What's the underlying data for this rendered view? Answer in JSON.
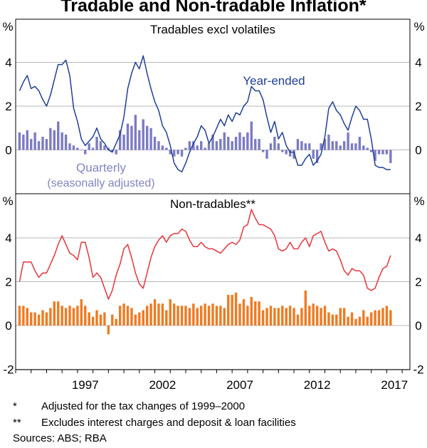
{
  "title": "Tradable and Non-tradable Inflation*",
  "chart_data": [
    {
      "type": "line+bar",
      "title": "Tradables excl volatiles",
      "unit_label": "%",
      "ylim": [
        -2,
        6
      ],
      "yticks": [
        0,
        2,
        4
      ],
      "ytick_labels": [
        "0",
        "2",
        "4"
      ],
      "line_series": {
        "name": "Year-ended",
        "color": "#1f3f99",
        "x": [
          1993.25,
          1993.5,
          1993.75,
          1994,
          1994.25,
          1994.5,
          1994.75,
          1995,
          1995.25,
          1995.5,
          1995.75,
          1996,
          1996.25,
          1996.5,
          1996.75,
          1997,
          1997.25,
          1997.5,
          1997.75,
          1998,
          1998.25,
          1998.5,
          1998.75,
          1999,
          1999.25,
          1999.5,
          1999.75,
          2000,
          2000.25,
          2000.5,
          2000.75,
          2001,
          2001.25,
          2001.5,
          2001.75,
          2002,
          2002.25,
          2002.5,
          2002.75,
          2003,
          2003.25,
          2003.5,
          2003.75,
          2004,
          2004.25,
          2004.5,
          2004.75,
          2005,
          2005.25,
          2005.5,
          2005.75,
          2006,
          2006.25,
          2006.5,
          2006.75,
          2007,
          2007.25,
          2007.5,
          2007.75,
          2008,
          2008.25,
          2008.5,
          2008.75,
          2009,
          2009.25,
          2009.5,
          2009.75,
          2010,
          2010.25,
          2010.5,
          2010.75,
          2011,
          2011.25,
          2011.5,
          2011.75,
          2012,
          2012.25,
          2012.5,
          2012.75,
          2013,
          2013.25,
          2013.5,
          2013.75,
          2014,
          2014.25,
          2014.5,
          2014.75,
          2015,
          2015.25,
          2015.5,
          2015.75,
          2016,
          2016.25,
          2016.5,
          2016.75,
          2017,
          2017.25
        ],
        "values": [
          2.7,
          3.1,
          3.4,
          2.8,
          2.9,
          2.7,
          2.3,
          2.0,
          2.5,
          3.2,
          3.9,
          3.9,
          4.1,
          3.4,
          1.9,
          1.3,
          0.5,
          0.2,
          0.4,
          0.6,
          1.0,
          0.5,
          0.3,
          0.0,
          -0.1,
          0.3,
          0.7,
          1.5,
          2.8,
          3.5,
          4.0,
          3.7,
          4.3,
          3.5,
          2.8,
          2.2,
          1.8,
          1.1,
          0.8,
          0.2,
          -0.6,
          -0.9,
          -1.0,
          -0.6,
          -0.1,
          0.3,
          0.6,
          1.1,
          0.9,
          0.3,
          0.6,
          1.0,
          1.4,
          1.1,
          1.6,
          1.3,
          1.7,
          1.6,
          2.0,
          2.2,
          2.9,
          2.7,
          2.7,
          2.3,
          1.5,
          0.8,
          1.3,
          0.5,
          0.8,
          0.2,
          -0.1,
          -0.1,
          -0.7,
          -0.7,
          -0.4,
          -0.2,
          -0.7,
          -0.5,
          -0.2,
          0.6,
          1.9,
          2.2,
          1.8,
          1.6,
          1.2,
          0.9,
          1.5,
          2.0,
          1.8,
          1.4,
          1.4,
          0.5,
          -0.7,
          -0.8,
          -0.8,
          -0.9,
          -0.9
        ]
      },
      "bar_series": {
        "name": "Quarterly (seasonally adjusted)",
        "label_lines": [
          "Quarterly",
          "(seasonally adjusted)"
        ],
        "color": "#7b7bc4",
        "x": [
          1993.25,
          1993.5,
          1993.75,
          1994,
          1994.25,
          1994.5,
          1994.75,
          1995,
          1995.25,
          1995.5,
          1995.75,
          1996,
          1996.25,
          1996.5,
          1996.75,
          1997,
          1997.25,
          1997.5,
          1997.75,
          1998,
          1998.25,
          1998.5,
          1998.75,
          1999,
          1999.25,
          1999.5,
          1999.75,
          2000,
          2000.25,
          2000.5,
          2000.75,
          2001,
          2001.25,
          2001.5,
          2001.75,
          2002,
          2002.25,
          2002.5,
          2002.75,
          2003,
          2003.25,
          2003.5,
          2003.75,
          2004,
          2004.25,
          2004.5,
          2004.75,
          2005,
          2005.25,
          2005.5,
          2005.75,
          2006,
          2006.25,
          2006.5,
          2006.75,
          2007,
          2007.25,
          2007.5,
          2007.75,
          2008,
          2008.25,
          2008.5,
          2008.75,
          2009,
          2009.25,
          2009.5,
          2009.75,
          2010,
          2010.25,
          2010.5,
          2010.75,
          2011,
          2011.25,
          2011.5,
          2011.75,
          2012,
          2012.25,
          2012.5,
          2012.75,
          2013,
          2013.25,
          2013.5,
          2013.75,
          2014,
          2014.25,
          2014.5,
          2014.75,
          2015,
          2015.25,
          2015.5,
          2015.75,
          2016,
          2016.25,
          2016.5,
          2016.75,
          2017,
          2017.25
        ],
        "values": [
          0.8,
          0.7,
          0.9,
          0.5,
          0.8,
          0.4,
          0.6,
          0.5,
          1.0,
          0.9,
          1.3,
          0.8,
          0.7,
          0.3,
          0.2,
          0.1,
          0.0,
          -0.2,
          0.3,
          0.1,
          0.6,
          0.4,
          0.2,
          0.1,
          -0.1,
          -0.2,
          0.9,
          0.7,
          1.2,
          1.1,
          1.6,
          0.9,
          1.4,
          1.1,
          1.0,
          0.6,
          0.4,
          0.2,
          0.1,
          -0.2,
          -0.3,
          -0.2,
          -0.3,
          0.1,
          0.4,
          0.4,
          0.2,
          0.4,
          0.1,
          0.3,
          0.7,
          0.4,
          0.5,
          0.8,
          0.6,
          0.4,
          0.6,
          0.8,
          0.6,
          0.8,
          1.3,
          0.5,
          0.5,
          -0.1,
          -0.4,
          0.3,
          0.6,
          0.3,
          -0.1,
          -0.2,
          -0.3,
          -0.4,
          0.5,
          0.4,
          0.3,
          0.3,
          -0.4,
          -0.6,
          0.3,
          0.5,
          0.7,
          0.4,
          0.4,
          0.2,
          0.4,
          0.8,
          0.3,
          0.3,
          0.6,
          0.2,
          0.1,
          -0.1,
          -0.5,
          -0.2,
          -0.2,
          -0.2,
          -0.6
        ]
      },
      "bar_label_color": "#8383c4"
    },
    {
      "type": "line+bar",
      "title": "Non-tradables**",
      "unit_label": "%",
      "ylim": [
        -2,
        6
      ],
      "yticks": [
        -2,
        0,
        2,
        4
      ],
      "ytick_labels": [
        "-2",
        "0",
        "2",
        "4"
      ],
      "line_series": {
        "name": "Year-ended",
        "color": "#e8353a",
        "x": [
          1993.25,
          1993.5,
          1993.75,
          1994,
          1994.25,
          1994.5,
          1994.75,
          1995,
          1995.25,
          1995.5,
          1995.75,
          1996,
          1996.25,
          1996.5,
          1996.75,
          1997,
          1997.25,
          1997.5,
          1997.75,
          1998,
          1998.25,
          1998.5,
          1998.75,
          1999,
          1999.25,
          1999.5,
          1999.75,
          2000,
          2000.25,
          2000.5,
          2000.75,
          2001,
          2001.25,
          2001.5,
          2001.75,
          2002,
          2002.25,
          2002.5,
          2002.75,
          2003,
          2003.25,
          2003.5,
          2003.75,
          2004,
          2004.25,
          2004.5,
          2004.75,
          2005,
          2005.25,
          2005.5,
          2005.75,
          2006,
          2006.25,
          2006.5,
          2006.75,
          2007,
          2007.25,
          2007.5,
          2007.75,
          2008,
          2008.25,
          2008.5,
          2008.75,
          2009,
          2009.25,
          2009.5,
          2009.75,
          2010,
          2010.25,
          2010.5,
          2010.75,
          2011,
          2011.25,
          2011.5,
          2011.75,
          2012,
          2012.25,
          2012.5,
          2012.75,
          2013,
          2013.25,
          2013.5,
          2013.75,
          2014,
          2014.25,
          2014.5,
          2014.75,
          2015,
          2015.25,
          2015.5,
          2015.75,
          2016,
          2016.25,
          2016.5,
          2016.75,
          2017,
          2017.25
        ],
        "values": [
          2.0,
          2.9,
          2.9,
          2.9,
          2.5,
          2.2,
          2.4,
          2.4,
          2.8,
          3.2,
          3.7,
          4.1,
          3.7,
          3.3,
          3.2,
          3.0,
          3.8,
          3.8,
          3.1,
          2.2,
          2.4,
          2.2,
          1.7,
          1.2,
          1.6,
          2.3,
          2.8,
          3.5,
          3.7,
          3.1,
          2.4,
          1.9,
          1.7,
          2.4,
          3.1,
          3.6,
          3.9,
          4.1,
          3.8,
          4.1,
          4.2,
          4.2,
          4.4,
          4.3,
          3.9,
          3.6,
          3.6,
          3.8,
          3.6,
          3.5,
          3.5,
          3.4,
          3.3,
          3.5,
          3.7,
          3.8,
          3.7,
          3.9,
          4.5,
          4.6,
          5.3,
          4.9,
          4.6,
          4.6,
          4.5,
          4.4,
          4.1,
          3.5,
          3.4,
          3.5,
          3.8,
          3.5,
          3.5,
          3.8,
          4.0,
          3.6,
          4.1,
          4.2,
          4.3,
          3.8,
          3.4,
          3.5,
          3.4,
          3.0,
          2.5,
          2.3,
          2.6,
          2.5,
          2.5,
          2.3,
          1.7,
          1.6,
          1.7,
          2.2,
          2.6,
          2.7,
          3.2
        ]
      },
      "bar_series": {
        "name": "Quarterly",
        "color": "#f07a20",
        "x": [
          1993.25,
          1993.5,
          1993.75,
          1994,
          1994.25,
          1994.5,
          1994.75,
          1995,
          1995.25,
          1995.5,
          1995.75,
          1996,
          1996.25,
          1996.5,
          1996.75,
          1997,
          1997.25,
          1997.5,
          1997.75,
          1998,
          1998.25,
          1998.5,
          1998.75,
          1999,
          1999.25,
          1999.5,
          1999.75,
          2000,
          2000.25,
          2000.5,
          2000.75,
          2001,
          2001.25,
          2001.5,
          2001.75,
          2002,
          2002.25,
          2002.5,
          2002.75,
          2003,
          2003.25,
          2003.5,
          2003.75,
          2004,
          2004.25,
          2004.5,
          2004.75,
          2005,
          2005.25,
          2005.5,
          2005.75,
          2006,
          2006.25,
          2006.5,
          2006.75,
          2007,
          2007.25,
          2007.5,
          2007.75,
          2008,
          2008.25,
          2008.5,
          2008.75,
          2009,
          2009.25,
          2009.5,
          2009.75,
          2010,
          2010.25,
          2010.5,
          2010.75,
          2011,
          2011.25,
          2011.5,
          2011.75,
          2012,
          2012.25,
          2012.5,
          2012.75,
          2013,
          2013.25,
          2013.5,
          2013.75,
          2014,
          2014.25,
          2014.5,
          2014.75,
          2015,
          2015.25,
          2015.5,
          2015.75,
          2016,
          2016.25,
          2016.5,
          2016.75,
          2017,
          2017.25
        ],
        "values": [
          0.9,
          0.9,
          0.8,
          0.6,
          0.6,
          0.5,
          0.7,
          0.6,
          0.8,
          1.1,
          1.1,
          0.9,
          0.8,
          0.9,
          0.8,
          0.9,
          1.2,
          0.9,
          0.6,
          0.4,
          0.7,
          0.5,
          0.6,
          -0.4,
          0.5,
          0.3,
          0.9,
          1.0,
          0.9,
          0.8,
          0.5,
          0.6,
          0.7,
          0.9,
          1.0,
          1.2,
          1.0,
          1.0,
          0.7,
          1.2,
          1.0,
          0.9,
          0.9,
          0.9,
          0.8,
          1.0,
          0.8,
          0.9,
          1.0,
          0.9,
          1.0,
          0.9,
          0.9,
          0.8,
          1.4,
          1.4,
          1.5,
          1.0,
          1.2,
          0.9,
          1.3,
          1.1,
          1.1,
          0.7,
          0.8,
          0.9,
          0.8,
          0.8,
          0.9,
          0.8,
          0.9,
          0.8,
          0.5,
          0.8,
          1.6,
          0.9,
          1.0,
          0.9,
          0.8,
          0.9,
          0.6,
          0.5,
          0.5,
          0.8,
          0.8,
          0.4,
          0.6,
          0.3,
          0.4,
          0.7,
          0.4,
          0.6,
          0.7,
          0.7,
          0.8,
          0.9,
          0.7
        ]
      }
    }
  ],
  "x_axis": {
    "xlim": [
      1993,
      2018.5
    ],
    "tick_labels": [
      "1997",
      "2002",
      "2007",
      "2012",
      "2017"
    ],
    "tick_values": [
      1997.5,
      2002.5,
      2007.5,
      2012.5,
      2017.5
    ]
  },
  "footnotes": [
    {
      "marker": "*",
      "text": "Adjusted for the tax changes of 1999–2000"
    },
    {
      "marker": "**",
      "text": "Excludes interest charges and deposit & loan facilities"
    }
  ],
  "sources": "Sources: ABS; RBA"
}
